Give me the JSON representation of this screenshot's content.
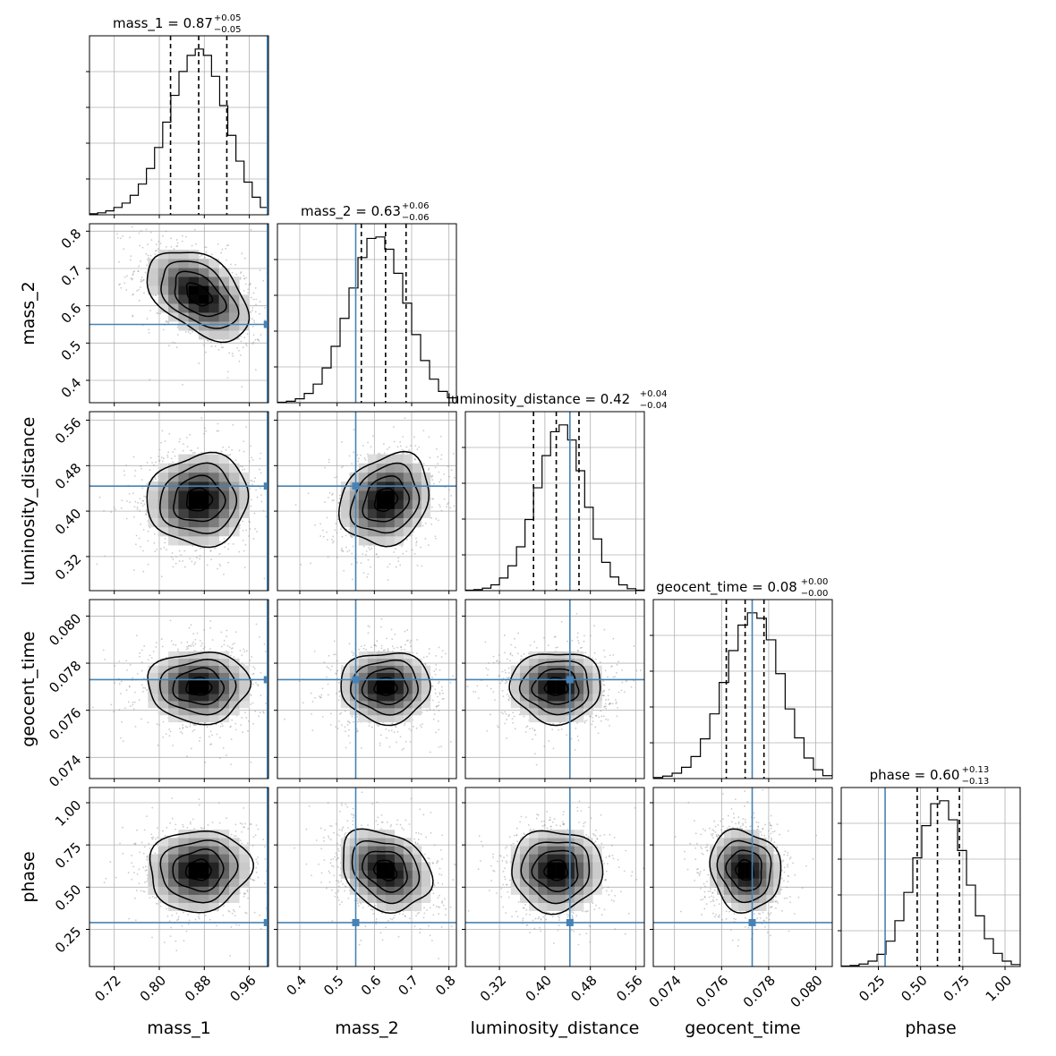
{
  "colors": {
    "truth": "#4682b4",
    "grid": "#b0b0b0",
    "hist": "#000000",
    "scatter": "#8c8c8c"
  },
  "chart_data": {
    "type": "corner",
    "grid": true,
    "parameters": [
      {
        "name": "mass_1",
        "title": {
          "main": "mass_1 = 0.87",
          "sup": "+0.05",
          "sub": "−0.05"
        },
        "range": [
          0.676,
          0.994
        ],
        "ticks": [
          0.72,
          0.8,
          0.88,
          0.96
        ],
        "tick_labels": [
          "0.72",
          "0.80",
          "0.88",
          "0.96"
        ],
        "truth": 0.992,
        "median": 0.87,
        "lower": 0.82,
        "upper": 0.92,
        "posterior_mean": 0.87,
        "posterior_sd": 0.045,
        "hist_bins": [
          0.2,
          0.4,
          0.8,
          1.5,
          2.4,
          4.0,
          6.3,
          9.5,
          13.8,
          19.0,
          24.5,
          29.4,
          32.7,
          34.0,
          32.7,
          28.4,
          22.4,
          16.3,
          11.0,
          6.7,
          3.6,
          1.5
        ]
      },
      {
        "name": "mass_2",
        "title": {
          "main": "mass_2 = 0.63",
          "sup": "+0.06",
          "sub": "−0.06"
        },
        "range": [
          0.34,
          0.82
        ],
        "ticks": [
          0.4,
          0.5,
          0.6,
          0.7,
          0.8
        ],
        "tick_labels": [
          "0.4",
          "0.5",
          "0.6",
          "0.7",
          "0.8"
        ],
        "truth": 0.55,
        "median": 0.63,
        "lower": 0.565,
        "upper": 0.685,
        "posterior_mean": 0.63,
        "posterior_sd": 0.06,
        "hist_bins": [
          0.1,
          0.3,
          0.8,
          1.9,
          3.8,
          7.1,
          11.5,
          17.2,
          23.4,
          29.6,
          33.5,
          33.8,
          31.3,
          26.4,
          20.3,
          13.9,
          8.6,
          4.8,
          2.3,
          1.0
        ]
      },
      {
        "name": "luminosity_distance",
        "title": {
          "main": "luminosity_distance = 0.42",
          "sup": "+0.04",
          "sub": "−0.04"
        },
        "range": [
          0.26,
          0.575
        ],
        "ticks": [
          0.32,
          0.4,
          0.48,
          0.56
        ],
        "tick_labels": [
          "0.32",
          "0.40",
          "0.48",
          "0.56"
        ],
        "truth": 0.444,
        "median": 0.42,
        "lower": 0.38,
        "upper": 0.46,
        "posterior_mean": 0.42,
        "posterior_sd": 0.04,
        "hist_bins": [
          0.1,
          0.2,
          0.5,
          1.2,
          2.6,
          5.1,
          9.0,
          14.6,
          21.1,
          27.7,
          32.6,
          34.0,
          30.9,
          24.6,
          17.1,
          10.6,
          5.8,
          2.8,
          1.2,
          0.4,
          0.1
        ]
      },
      {
        "name": "geocent_time",
        "title": {
          "main": "geocent_time = 0.08",
          "sup": "+0.00",
          "sub": "−0.00"
        },
        "range": [
          0.0731,
          0.0807
        ],
        "ticks": [
          0.074,
          0.076,
          0.078,
          0.08
        ],
        "tick_labels": [
          "0.074",
          "0.076",
          "0.078",
          "0.080"
        ],
        "truth": 0.0773,
        "median": 0.077,
        "lower": 0.0762,
        "upper": 0.0778,
        "posterior_mean": 0.077,
        "posterior_sd": 0.00075,
        "hist_bins": [
          0.2,
          0.5,
          1.1,
          2.3,
          4.5,
          8.1,
          13.2,
          19.6,
          26.1,
          31.3,
          33.8,
          32.7,
          28.3,
          21.4,
          14.2,
          8.3,
          4.2,
          1.8,
          0.6
        ]
      },
      {
        "name": "phase",
        "title": {
          "main": "phase = 0.60",
          "sup": "+0.13",
          "sub": "−0.13"
        },
        "range": [
          0.03,
          1.09
        ],
        "ticks": [
          0.25,
          0.5,
          0.75,
          1.0
        ],
        "tick_labels": [
          "0.25",
          "0.50",
          "0.75",
          "1.00"
        ],
        "truth": 0.29,
        "median": 0.6,
        "lower": 0.48,
        "upper": 0.73,
        "posterior_mean": 0.6,
        "posterior_sd": 0.12,
        "hist_bins": [
          0.1,
          0.2,
          0.5,
          1.1,
          2.5,
          5.2,
          9.4,
          15.2,
          22.3,
          28.9,
          33.4,
          34.0,
          30.1,
          23.8,
          16.7,
          10.4,
          5.7,
          2.7,
          1.1,
          0.4
        ]
      }
    ],
    "correlations": [
      [
        1,
        -0.45,
        0.05,
        0.0,
        0.05
      ],
      [
        -0.45,
        1,
        0.2,
        0.0,
        -0.25
      ],
      [
        0.05,
        0.2,
        1,
        0.0,
        0.0
      ],
      [
        0.0,
        0.0,
        0.0,
        1,
        -0.1
      ],
      [
        0.05,
        -0.25,
        0.0,
        -0.1,
        1
      ]
    ]
  }
}
